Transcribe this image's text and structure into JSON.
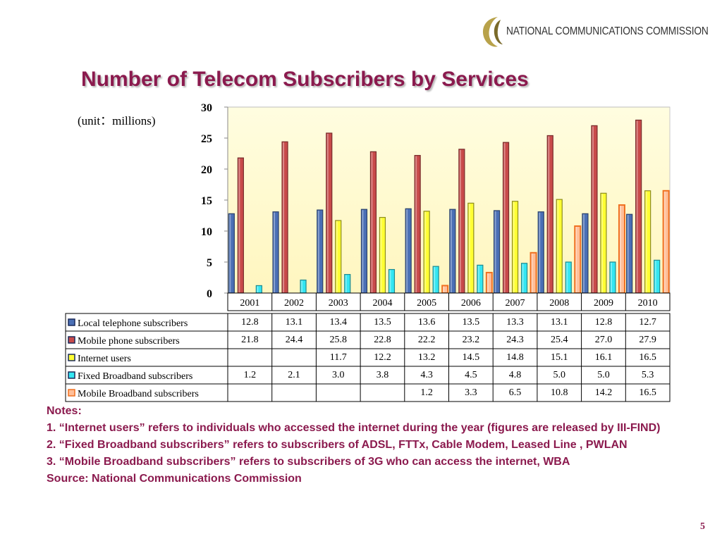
{
  "header": {
    "org_name": "NATIONAL COMMUNICATIONS COMMISSION",
    "title": "Number of Telecom Subscribers by Services",
    "unit": "(unit：millions)"
  },
  "chart_data": {
    "type": "bar",
    "title": "Number of Telecom Subscribers by Services",
    "ylabel": "(unit：millions)",
    "ylim": [
      0,
      30
    ],
    "yticks": [
      0,
      5,
      10,
      15,
      20,
      25,
      30
    ],
    "grid": false,
    "categories": [
      "2001",
      "2002",
      "2003",
      "2004",
      "2005",
      "2006",
      "2007",
      "2008",
      "2009",
      "2010"
    ],
    "series": [
      {
        "name": "Local telephone subscribers",
        "color": "#4a6fb5",
        "values": [
          12.8,
          13.1,
          13.4,
          13.5,
          13.6,
          13.5,
          13.3,
          13.1,
          12.8,
          12.7
        ]
      },
      {
        "name": "Mobile phone subscribers",
        "color": "#c84a4a",
        "values": [
          21.8,
          24.4,
          25.8,
          22.8,
          22.2,
          23.2,
          24.3,
          25.4,
          27.0,
          27.9
        ]
      },
      {
        "name": "Internet users",
        "color": "#ffff33",
        "values": [
          null,
          null,
          11.7,
          12.2,
          13.2,
          14.5,
          14.8,
          15.1,
          16.1,
          16.5
        ]
      },
      {
        "name": "Fixed Broadband subscribers",
        "color": "#33e6f2",
        "values": [
          1.2,
          2.1,
          3.0,
          3.8,
          4.3,
          4.5,
          4.8,
          5.0,
          5.0,
          5.3
        ]
      },
      {
        "name": "Mobile Broadband subscribers",
        "color": "#ffbf99",
        "values": [
          null,
          null,
          null,
          null,
          1.2,
          3.3,
          6.5,
          10.8,
          14.2,
          16.5
        ]
      }
    ]
  },
  "notes": {
    "heading": "Notes:",
    "note1": "1. “Internet users” refers to individuals who accessed the internet during the year (figures are released by III-FIND)",
    "note2": "2. “Fixed Broadband subscribers” refers to subscribers of ADSL, FTTx, Cable Modem, Leased Line , PWLAN",
    "note3": "3. “Mobile Broadband subscribers” refers to subscribers of 3G who can access the internet, WBA",
    "source": "Source: National Communications Commission"
  },
  "footer": {
    "page_number": "5"
  }
}
